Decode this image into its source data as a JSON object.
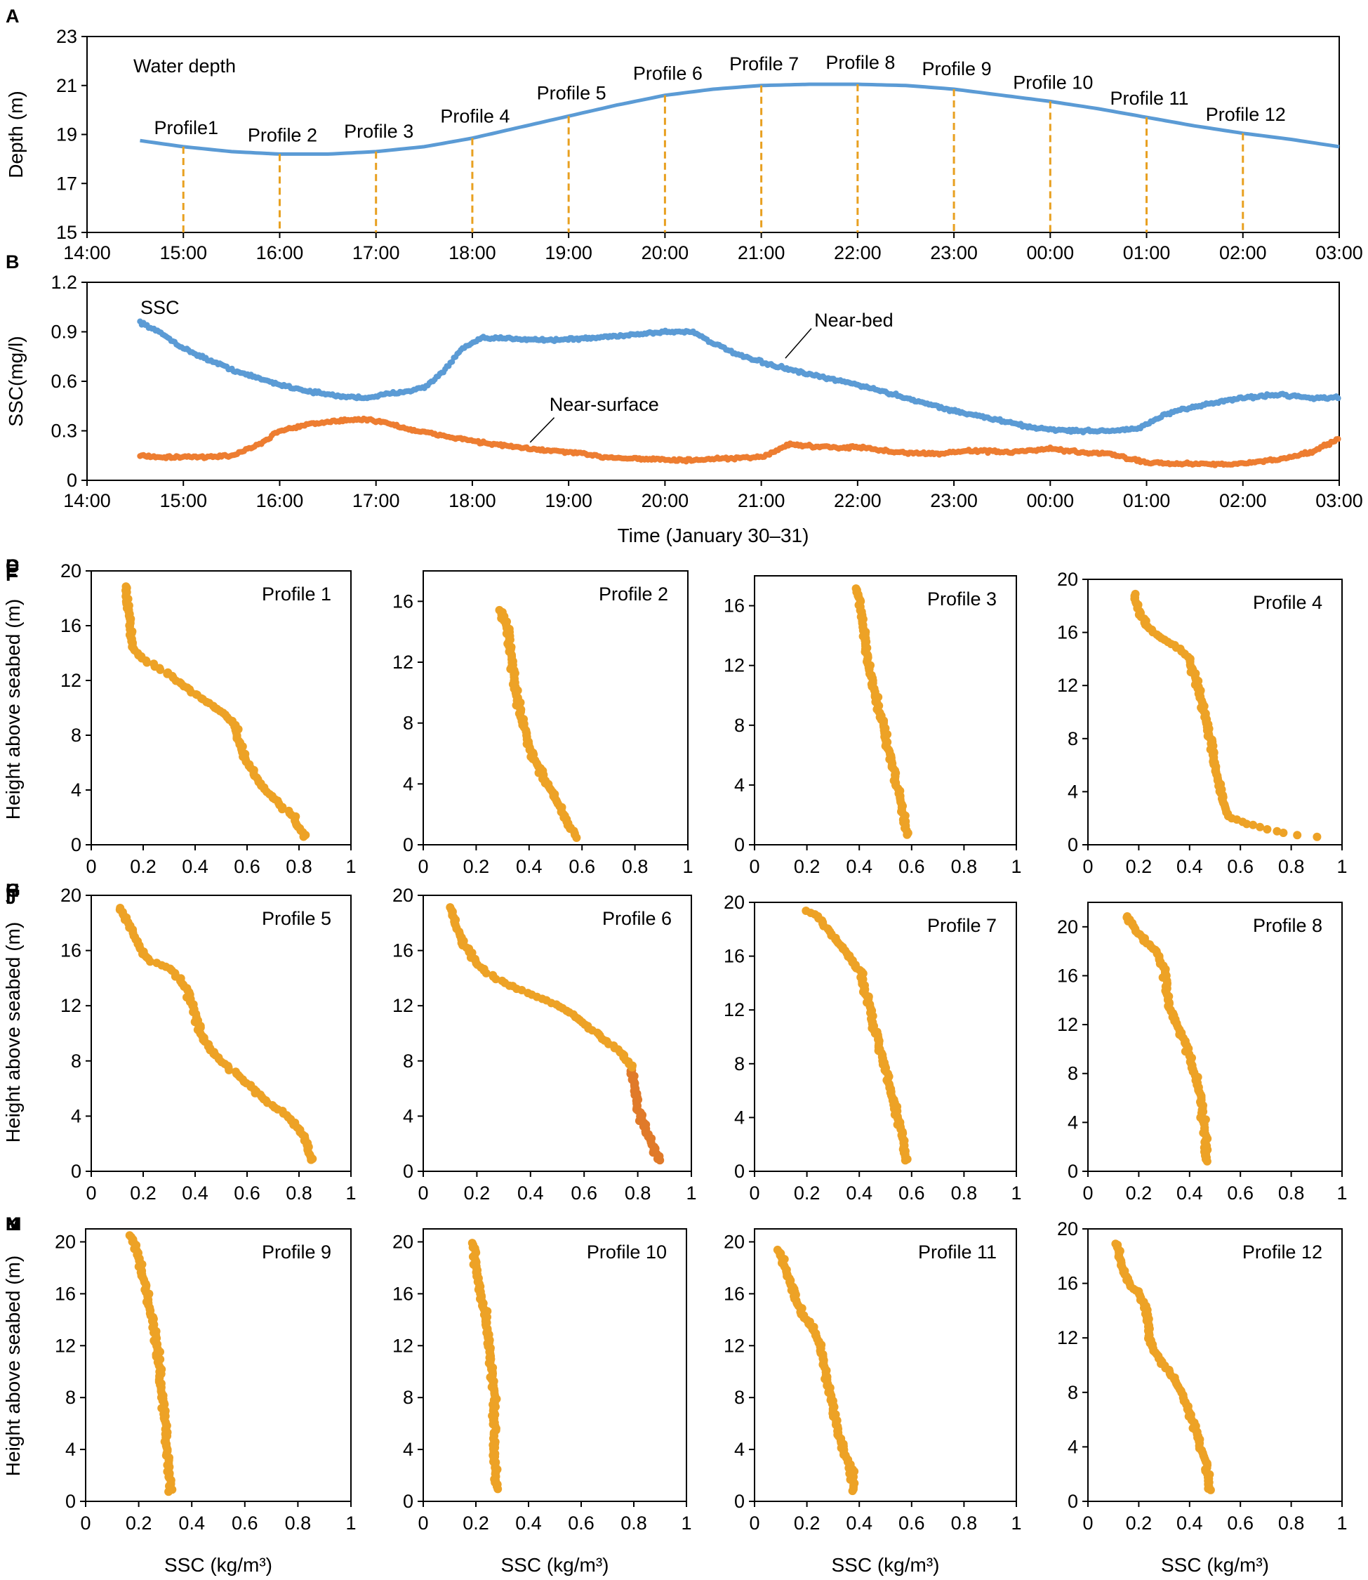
{
  "chart_data": [
    {
      "id": "A",
      "panel_label": "A",
      "type": "line",
      "title": "Water depth",
      "xlabel": "",
      "ylabel": "Depth (m)",
      "ylim": [
        15,
        23
      ],
      "yticks": [
        15,
        17,
        19,
        21,
        23
      ],
      "xlim": [
        14,
        27
      ],
      "x_tick_labels": [
        "14:00",
        "15:00",
        "16:00",
        "17:00",
        "18:00",
        "19:00",
        "20:00",
        "21:00",
        "22:00",
        "23:00",
        "00:00",
        "01:00",
        "02:00",
        "03:00"
      ],
      "colors": {
        "line": "#5b9bd5",
        "markers": "#e8a020"
      },
      "series": [
        {
          "name": "Water depth",
          "x": [
            14.55,
            15,
            15.5,
            16,
            16.5,
            17,
            17.5,
            18,
            18.5,
            19,
            19.5,
            20,
            20.5,
            21,
            21.5,
            22,
            22.5,
            23,
            23.5,
            24,
            24.5,
            25,
            25.5,
            26,
            26.5,
            27
          ],
          "values": [
            18.75,
            18.5,
            18.3,
            18.2,
            18.2,
            18.3,
            18.5,
            18.85,
            19.3,
            19.75,
            20.2,
            20.6,
            20.85,
            21.0,
            21.05,
            21.05,
            21.0,
            20.85,
            20.6,
            20.35,
            20.05,
            19.7,
            19.35,
            19.05,
            18.8,
            18.5
          ]
        }
      ],
      "profile_markers": [
        {
          "label": "Profile1",
          "x": 15
        },
        {
          "label": "Profile 2",
          "x": 16
        },
        {
          "label": "Profile 3",
          "x": 17
        },
        {
          "label": "Profile 4",
          "x": 18
        },
        {
          "label": "Profile 5",
          "x": 19
        },
        {
          "label": "Profile 6",
          "x": 20
        },
        {
          "label": "Profile 7",
          "x": 21
        },
        {
          "label": "Profile 8",
          "x": 22
        },
        {
          "label": "Profile 9",
          "x": 23
        },
        {
          "label": "Profile 10",
          "x": 24
        },
        {
          "label": "Profile 11",
          "x": 25
        },
        {
          "label": "Profile 12",
          "x": 26
        }
      ]
    },
    {
      "id": "B",
      "panel_label": "B",
      "type": "scatter",
      "title": "SSC",
      "xlabel": "Time (January 30–31)",
      "ylabel": "SSC(mg/l)",
      "ylim": [
        0,
        1.2
      ],
      "yticks": [
        0,
        0.3,
        0.6,
        0.9,
        1.2
      ],
      "ytick_labels": [
        "0",
        "0.3",
        "0.6",
        "0.9",
        "1.2"
      ],
      "xlim": [
        14,
        27
      ],
      "x_tick_labels": [
        "14:00",
        "15:00",
        "16:00",
        "17:00",
        "18:00",
        "19:00",
        "20:00",
        "21:00",
        "22:00",
        "23:00",
        "00:00",
        "01:00",
        "02:00",
        "03:00"
      ],
      "series": [
        {
          "name": "Near-bed",
          "color": "#5b9bd5",
          "x": [
            14.55,
            14.8,
            15.0,
            15.3,
            15.6,
            16.0,
            16.3,
            16.6,
            16.9,
            17.2,
            17.5,
            17.7,
            17.9,
            18.1,
            18.4,
            18.8,
            19.2,
            19.6,
            20.0,
            20.3,
            20.5,
            20.8,
            21.1,
            21.5,
            22.0,
            22.5,
            23.0,
            23.5,
            23.8,
            24.2,
            24.6,
            24.9,
            25.2,
            25.6,
            26.0,
            26.4,
            26.7,
            27.0
          ],
          "values": [
            0.96,
            0.88,
            0.8,
            0.72,
            0.65,
            0.58,
            0.54,
            0.51,
            0.5,
            0.53,
            0.56,
            0.66,
            0.8,
            0.86,
            0.86,
            0.85,
            0.86,
            0.88,
            0.9,
            0.9,
            0.83,
            0.75,
            0.7,
            0.64,
            0.58,
            0.5,
            0.42,
            0.36,
            0.32,
            0.3,
            0.3,
            0.31,
            0.4,
            0.46,
            0.5,
            0.52,
            0.5,
            0.5
          ]
        },
        {
          "name": "Near-surface",
          "color": "#ed7d31",
          "x": [
            14.55,
            14.8,
            15.0,
            15.2,
            15.5,
            15.8,
            16.0,
            16.3,
            16.6,
            16.9,
            17.1,
            17.4,
            17.8,
            18.2,
            18.6,
            19.0,
            19.4,
            19.8,
            20.2,
            20.6,
            21.0,
            21.3,
            21.6,
            22.0,
            22.4,
            22.8,
            23.2,
            23.6,
            24.0,
            24.3,
            24.6,
            25.0,
            25.3,
            25.6,
            26.0,
            26.4,
            26.7,
            27.0
          ],
          "values": [
            0.15,
            0.14,
            0.14,
            0.14,
            0.15,
            0.22,
            0.3,
            0.34,
            0.36,
            0.37,
            0.35,
            0.3,
            0.26,
            0.22,
            0.19,
            0.17,
            0.14,
            0.13,
            0.12,
            0.13,
            0.14,
            0.22,
            0.2,
            0.2,
            0.17,
            0.16,
            0.18,
            0.17,
            0.19,
            0.17,
            0.16,
            0.11,
            0.1,
            0.1,
            0.1,
            0.13,
            0.17,
            0.25
          ]
        }
      ],
      "annotations": [
        {
          "text": "Near-bed",
          "x": 21.55,
          "y": 0.97
        },
        {
          "text": "Near-surface",
          "x": 18.8,
          "y": 0.46
        }
      ]
    },
    {
      "id": "C",
      "panel_label": "C",
      "type": "scatter",
      "title": "Profile 1",
      "xlabel": "",
      "ylabel": "Height above seabed (m)",
      "xlim": [
        0,
        1
      ],
      "ylim": [
        0,
        20
      ],
      "xticks": [
        0,
        0.2,
        0.4,
        0.6,
        0.8,
        1
      ],
      "yticks": [
        0,
        4,
        8,
        12,
        16,
        20
      ],
      "color": "#eda226",
      "series": [
        {
          "name": "Profile 1",
          "x": [
            0.13,
            0.14,
            0.15,
            0.16,
            0.2,
            0.27,
            0.33,
            0.4,
            0.48,
            0.55,
            0.57,
            0.6,
            0.65,
            0.72,
            0.78,
            0.82
          ],
          "y": [
            19,
            17.5,
            16,
            14.5,
            13.5,
            12.8,
            12,
            11,
            10,
            9,
            7.5,
            6,
            4.5,
            3,
            2,
            0.6
          ]
        }
      ]
    },
    {
      "id": "D",
      "panel_label": "D",
      "type": "scatter",
      "title": "Profile 2",
      "xlabel": "",
      "ylabel": "",
      "xlim": [
        0,
        1
      ],
      "ylim": [
        0,
        18
      ],
      "xticks": [
        0,
        0.2,
        0.4,
        0.6,
        0.8,
        1
      ],
      "yticks": [
        0,
        4,
        8,
        12,
        16
      ],
      "color": "#eda226",
      "series": [
        {
          "name": "Profile 2",
          "x": [
            0.29,
            0.31,
            0.33,
            0.34,
            0.35,
            0.37,
            0.39,
            0.41,
            0.44,
            0.47,
            0.5,
            0.53,
            0.56,
            0.58
          ],
          "y": [
            15.5,
            14.5,
            13,
            11.5,
            10,
            8.5,
            7,
            6,
            5,
            4,
            3,
            2,
            1,
            0.5
          ]
        }
      ]
    },
    {
      "id": "E",
      "panel_label": "E",
      "type": "scatter",
      "title": "Profile 3",
      "xlabel": "",
      "ylabel": "",
      "xlim": [
        0,
        1
      ],
      "ylim": [
        0,
        18
      ],
      "xticks": [
        0,
        0.2,
        0.4,
        0.6,
        0.8,
        1
      ],
      "yticks": [
        0,
        4,
        8,
        12,
        16
      ],
      "color": "#eda226",
      "series": [
        {
          "name": "Profile 3",
          "x": [
            0.39,
            0.4,
            0.41,
            0.42,
            0.43,
            0.45,
            0.47,
            0.49,
            0.51,
            0.53,
            0.55,
            0.57,
            0.58
          ],
          "y": [
            17.2,
            16.5,
            15.5,
            14,
            12.5,
            11,
            9.5,
            8,
            6.5,
            5,
            3.5,
            2,
            0.7
          ]
        }
      ]
    },
    {
      "id": "F",
      "panel_label": "F",
      "type": "scatter",
      "title": "Profile 4",
      "xlabel": "",
      "ylabel": "",
      "xlim": [
        0,
        1
      ],
      "ylim": [
        0,
        20
      ],
      "xticks": [
        0,
        0.2,
        0.4,
        0.6,
        0.8,
        1
      ],
      "yticks": [
        0,
        4,
        8,
        12,
        16,
        20
      ],
      "color": "#eda226",
      "series": [
        {
          "name": "Profile 4",
          "x": [
            0.18,
            0.2,
            0.24,
            0.3,
            0.36,
            0.4,
            0.43,
            0.46,
            0.48,
            0.5,
            0.52,
            0.55,
            0.62,
            0.7,
            0.8,
            0.9
          ],
          "y": [
            19,
            17.5,
            16.3,
            15.5,
            14.8,
            14,
            12,
            10,
            8,
            6,
            4,
            2.2,
            1.6,
            1.2,
            0.8,
            0.6
          ]
        }
      ]
    },
    {
      "id": "G",
      "panel_label": "G",
      "type": "scatter",
      "title": "Profile 5",
      "xlabel": "",
      "ylabel": "Height above seabed (m)",
      "xlim": [
        0,
        1
      ],
      "ylim": [
        0,
        20
      ],
      "xticks": [
        0,
        0.2,
        0.4,
        0.6,
        0.8,
        1
      ],
      "yticks": [
        0,
        4,
        8,
        12,
        16,
        20
      ],
      "color": "#eda226",
      "series": [
        {
          "name": "Profile 5",
          "x": [
            0.11,
            0.14,
            0.18,
            0.22,
            0.3,
            0.36,
            0.39,
            0.42,
            0.47,
            0.55,
            0.62,
            0.68,
            0.76,
            0.82,
            0.85
          ],
          "y": [
            19.2,
            18,
            16.5,
            15.3,
            14.7,
            13.5,
            12,
            10,
            8.5,
            7.2,
            6,
            5,
            4,
            2.5,
            0.8
          ]
        }
      ]
    },
    {
      "id": "H",
      "panel_label": "H",
      "type": "scatter",
      "title": "Profile 6",
      "xlabel": "",
      "ylabel": "",
      "xlim": [
        0,
        1
      ],
      "ylim": [
        0,
        20
      ],
      "xticks": [
        0,
        0.2,
        0.4,
        0.6,
        0.8,
        1
      ],
      "yticks": [
        0,
        4,
        8,
        12,
        16,
        20
      ],
      "color": "#eda226",
      "series": [
        {
          "name": "Profile 6",
          "x": [
            0.1,
            0.12,
            0.15,
            0.2,
            0.27,
            0.35,
            0.45,
            0.55,
            0.65,
            0.74,
            0.78,
            0.79,
            0.8,
            0.83,
            0.86,
            0.88
          ],
          "y": [
            19.2,
            18,
            16.5,
            15,
            14,
            13.2,
            12.5,
            11.5,
            10,
            8.5,
            7.5,
            6,
            4.5,
            3,
            1.8,
            0.8
          ]
        }
      ]
    },
    {
      "id": "I",
      "panel_label": "I",
      "type": "scatter",
      "title": "Profile 7",
      "xlabel": "",
      "ylabel": "",
      "xlim": [
        0,
        1
      ],
      "ylim": [
        0,
        20
      ],
      "xticks": [
        0,
        0.2,
        0.4,
        0.6,
        0.8,
        1
      ],
      "yticks": [
        0,
        4,
        8,
        12,
        16,
        20
      ],
      "color": "#eda226",
      "series": [
        {
          "name": "Profile 7",
          "x": [
            0.19,
            0.25,
            0.3,
            0.35,
            0.4,
            0.42,
            0.44,
            0.46,
            0.48,
            0.5,
            0.52,
            0.54,
            0.56,
            0.58
          ],
          "y": [
            19.5,
            18.8,
            17.5,
            16.3,
            15,
            13.5,
            12,
            10.5,
            9,
            7.5,
            6,
            4.5,
            3,
            0.8
          ]
        }
      ]
    },
    {
      "id": "J",
      "panel_label": "J",
      "type": "scatter",
      "title": "Profile 8",
      "xlabel": "",
      "ylabel": "",
      "xlim": [
        0,
        1
      ],
      "ylim": [
        0,
        22
      ],
      "xticks": [
        0,
        0.2,
        0.4,
        0.6,
        0.8,
        1
      ],
      "yticks": [
        0,
        4,
        8,
        12,
        16,
        20
      ],
      "color": "#eda226",
      "series": [
        {
          "name": "Profile 8",
          "x": [
            0.15,
            0.18,
            0.22,
            0.27,
            0.3,
            0.31,
            0.32,
            0.34,
            0.37,
            0.4,
            0.42,
            0.44,
            0.45,
            0.46,
            0.47
          ],
          "y": [
            21,
            20,
            19,
            18,
            16.5,
            15,
            13.5,
            12.5,
            11,
            9.5,
            8,
            6.5,
            5,
            3,
            0.8
          ]
        }
      ]
    },
    {
      "id": "K",
      "panel_label": "K",
      "type": "scatter",
      "title": "Profile 9",
      "xlabel": "SSC (kg/m³)",
      "ylabel": "Height above seabed (m)",
      "xlim": [
        0,
        1
      ],
      "ylim": [
        0,
        21
      ],
      "xticks": [
        0,
        0.2,
        0.4,
        0.6,
        0.8,
        1
      ],
      "yticks": [
        0,
        4,
        8,
        12,
        16,
        20
      ],
      "color": "#eda226",
      "series": [
        {
          "name": "Profile 9",
          "x": [
            0.17,
            0.19,
            0.21,
            0.23,
            0.25,
            0.27,
            0.28,
            0.29,
            0.3,
            0.31,
            0.32
          ],
          "y": [
            20.5,
            19.5,
            18,
            16,
            14,
            12,
            10,
            8,
            6,
            3.5,
            0.7
          ]
        }
      ]
    },
    {
      "id": "L",
      "panel_label": "L",
      "type": "scatter",
      "title": "Profile 10",
      "xlabel": "SSC (kg/m³)",
      "ylabel": "",
      "xlim": [
        0,
        1
      ],
      "ylim": [
        0,
        21
      ],
      "xticks": [
        0,
        0.2,
        0.4,
        0.6,
        0.8,
        1
      ],
      "yticks": [
        0,
        4,
        8,
        12,
        16,
        20
      ],
      "color": "#eda226",
      "series": [
        {
          "name": "Profile 10",
          "x": [
            0.19,
            0.2,
            0.22,
            0.24,
            0.25,
            0.26,
            0.27,
            0.27,
            0.27,
            0.28
          ],
          "y": [
            20,
            18,
            16,
            14,
            12,
            10,
            8,
            6,
            4,
            1
          ]
        }
      ]
    },
    {
      "id": "M",
      "panel_label": "M",
      "type": "scatter",
      "title": "Profile 11",
      "xlabel": "SSC (kg/m³)",
      "ylabel": "",
      "xlim": [
        0,
        1
      ],
      "ylim": [
        0,
        21
      ],
      "xticks": [
        0,
        0.2,
        0.4,
        0.6,
        0.8,
        1
      ],
      "yticks": [
        0,
        4,
        8,
        12,
        16,
        20
      ],
      "color": "#eda226",
      "series": [
        {
          "name": "Profile 11",
          "x": [
            0.09,
            0.12,
            0.15,
            0.18,
            0.22,
            0.25,
            0.27,
            0.29,
            0.31,
            0.34,
            0.37,
            0.38
          ],
          "y": [
            19.5,
            18,
            16,
            14.5,
            13.5,
            12,
            10,
            8,
            6,
            4,
            2.5,
            0.8
          ]
        }
      ]
    },
    {
      "id": "N",
      "panel_label": "N",
      "type": "scatter",
      "title": "Profile 12",
      "xlabel": "SSC (kg/m³)",
      "ylabel": "",
      "xlim": [
        0,
        1
      ],
      "ylim": [
        0,
        20
      ],
      "xticks": [
        0,
        0.2,
        0.4,
        0.6,
        0.8,
        1
      ],
      "yticks": [
        0,
        4,
        8,
        12,
        16,
        20
      ],
      "color": "#eda226",
      "series": [
        {
          "name": "Profile 12",
          "x": [
            0.11,
            0.13,
            0.16,
            0.2,
            0.23,
            0.24,
            0.26,
            0.3,
            0.34,
            0.37,
            0.4,
            0.43,
            0.46,
            0.48
          ],
          "y": [
            19,
            17.5,
            16,
            15.3,
            14,
            12.5,
            11,
            10,
            9,
            8,
            6.5,
            5,
            3,
            0.8
          ]
        }
      ]
    }
  ]
}
